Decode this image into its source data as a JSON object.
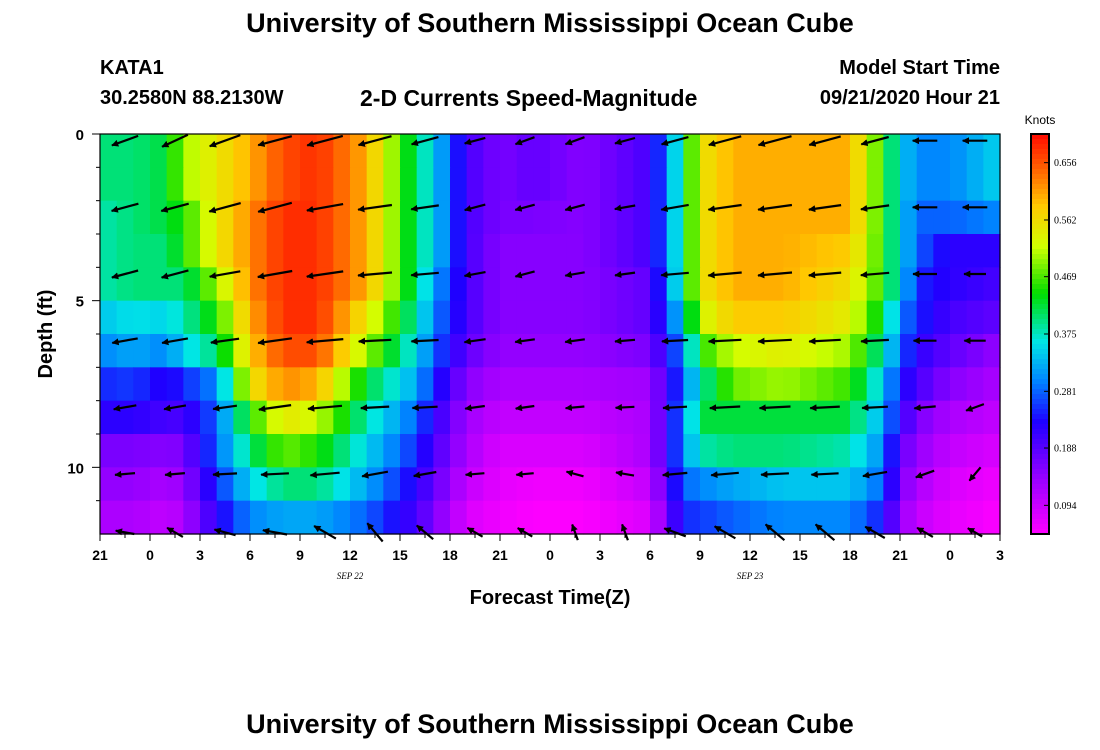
{
  "page_title": "University of Southern Mississippi Ocean Cube",
  "footer_title": "University of Southern Mississippi Ocean Cube",
  "station": {
    "id": "KATA1",
    "coordinates": "30.2580N 88.2130W",
    "model_start_label": "Model Start Time",
    "model_start_time": "09/21/2020 Hour 21"
  },
  "chart_data": {
    "type": "heatmap",
    "title": "2-D Currents Speed-Magnitude",
    "xlabel": "Forecast Time(Z)",
    "ylabel": "Depth (ft)",
    "x_tick_labels": [
      "21",
      "0",
      "3",
      "6",
      "9",
      "12",
      "15",
      "18",
      "21",
      "0",
      "3",
      "6",
      "9",
      "12",
      "15",
      "18",
      "21",
      "0",
      "3"
    ],
    "x_tick_hours": [
      0,
      3,
      6,
      9,
      12,
      15,
      18,
      21,
      24,
      27,
      30,
      33,
      36,
      39,
      42,
      45,
      48,
      51,
      54
    ],
    "date_labels": [
      {
        "text": "SEP 22",
        "hour": 15
      },
      {
        "text": "SEP 23",
        "hour": 39
      }
    ],
    "y_ticks": [
      0,
      5,
      10
    ],
    "ylim": [
      0,
      12
    ],
    "xlim": [
      0,
      54
    ],
    "colorbar": {
      "unit": "Knots",
      "min": 0.047,
      "max": 0.703,
      "tick_values": [
        0.094,
        0.188,
        0.281,
        0.375,
        0.469,
        0.562,
        0.656
      ],
      "tick_labels": [
        "0.094",
        "0.188",
        "0.281",
        "0.375",
        "0.469",
        "0.562",
        "0.656"
      ]
    },
    "depth_rows": [
      0.5,
      1.5,
      2.5,
      3.5,
      4.5,
      5.5,
      6.5,
      7.5,
      8.5,
      9.5,
      10.5,
      11.5
    ],
    "time_profile_hours": [
      0,
      2,
      4,
      5,
      7,
      9,
      11,
      13,
      16,
      19,
      20,
      22,
      24,
      26,
      29,
      33,
      35,
      36,
      38,
      41,
      45,
      47,
      48,
      49,
      51,
      54
    ],
    "speed_profiles": [
      [
        0.4,
        0.4,
        0.42,
        0.5,
        0.55,
        0.6,
        0.66,
        0.68,
        0.6,
        0.4,
        0.35,
        0.2,
        0.16,
        0.18,
        0.15,
        0.2,
        0.4,
        0.55,
        0.6,
        0.6,
        0.6,
        0.45,
        0.35,
        0.3,
        0.3,
        0.35
      ],
      [
        0.4,
        0.4,
        0.42,
        0.5,
        0.55,
        0.6,
        0.66,
        0.68,
        0.6,
        0.4,
        0.35,
        0.2,
        0.16,
        0.18,
        0.15,
        0.2,
        0.4,
        0.55,
        0.6,
        0.6,
        0.6,
        0.45,
        0.35,
        0.3,
        0.3,
        0.35
      ],
      [
        0.38,
        0.4,
        0.42,
        0.45,
        0.55,
        0.62,
        0.68,
        0.68,
        0.6,
        0.4,
        0.35,
        0.2,
        0.16,
        0.16,
        0.15,
        0.2,
        0.4,
        0.55,
        0.6,
        0.6,
        0.6,
        0.45,
        0.35,
        0.28,
        0.28,
        0.3
      ],
      [
        0.38,
        0.4,
        0.4,
        0.45,
        0.55,
        0.62,
        0.68,
        0.68,
        0.6,
        0.4,
        0.35,
        0.2,
        0.15,
        0.15,
        0.15,
        0.2,
        0.4,
        0.55,
        0.6,
        0.6,
        0.58,
        0.45,
        0.35,
        0.28,
        0.22,
        0.22
      ],
      [
        0.38,
        0.4,
        0.4,
        0.4,
        0.5,
        0.62,
        0.68,
        0.68,
        0.6,
        0.4,
        0.32,
        0.2,
        0.15,
        0.15,
        0.15,
        0.18,
        0.4,
        0.55,
        0.6,
        0.6,
        0.56,
        0.45,
        0.35,
        0.25,
        0.22,
        0.2
      ],
      [
        0.34,
        0.36,
        0.35,
        0.38,
        0.45,
        0.6,
        0.68,
        0.68,
        0.55,
        0.38,
        0.3,
        0.2,
        0.15,
        0.15,
        0.15,
        0.18,
        0.35,
        0.52,
        0.58,
        0.58,
        0.54,
        0.42,
        0.3,
        0.25,
        0.2,
        0.18
      ],
      [
        0.3,
        0.32,
        0.3,
        0.35,
        0.4,
        0.58,
        0.66,
        0.66,
        0.5,
        0.35,
        0.28,
        0.18,
        0.14,
        0.14,
        0.14,
        0.16,
        0.3,
        0.45,
        0.52,
        0.54,
        0.5,
        0.38,
        0.28,
        0.22,
        0.18,
        0.14
      ],
      [
        0.25,
        0.26,
        0.22,
        0.25,
        0.3,
        0.55,
        0.62,
        0.6,
        0.42,
        0.32,
        0.25,
        0.15,
        0.12,
        0.12,
        0.12,
        0.13,
        0.28,
        0.38,
        0.48,
        0.5,
        0.46,
        0.34,
        0.24,
        0.2,
        0.15,
        0.12
      ],
      [
        0.22,
        0.22,
        0.2,
        0.2,
        0.28,
        0.45,
        0.55,
        0.52,
        0.38,
        0.28,
        0.22,
        0.13,
        0.1,
        0.1,
        0.1,
        0.12,
        0.3,
        0.42,
        0.42,
        0.42,
        0.42,
        0.32,
        0.22,
        0.16,
        0.12,
        0.1
      ],
      [
        0.16,
        0.16,
        0.15,
        0.16,
        0.28,
        0.4,
        0.48,
        0.45,
        0.35,
        0.25,
        0.2,
        0.12,
        0.08,
        0.08,
        0.08,
        0.12,
        0.3,
        0.38,
        0.4,
        0.4,
        0.38,
        0.3,
        0.18,
        0.14,
        0.1,
        0.08
      ],
      [
        0.14,
        0.14,
        0.12,
        0.14,
        0.25,
        0.35,
        0.4,
        0.4,
        0.32,
        0.22,
        0.18,
        0.1,
        0.07,
        0.06,
        0.06,
        0.1,
        0.28,
        0.3,
        0.32,
        0.34,
        0.34,
        0.28,
        0.16,
        0.12,
        0.08,
        0.06
      ],
      [
        0.12,
        0.12,
        0.1,
        0.12,
        0.22,
        0.3,
        0.32,
        0.32,
        0.28,
        0.2,
        0.16,
        0.08,
        0.06,
        0.05,
        0.05,
        0.08,
        0.25,
        0.26,
        0.28,
        0.3,
        0.3,
        0.24,
        0.14,
        0.1,
        0.07,
        0.05
      ]
    ],
    "vector_hours": [
      1.5,
      4.5,
      7.5,
      10.5,
      13.5,
      16.5,
      19.5,
      22.5,
      25.5,
      28.5,
      31.5,
      34.5,
      37.5,
      40.5,
      43.5,
      46.5,
      49.5,
      52.5
    ],
    "vector_depths": [
      0.2,
      2.2,
      4.2,
      6.2,
      8.2,
      10.2,
      11.95
    ],
    "vectors_direction_deg": [
      [
        200,
        205,
        200,
        195,
        195,
        195,
        195,
        195,
        200,
        200,
        195,
        195,
        195,
        195,
        195,
        195,
        180,
        180
      ],
      [
        195,
        195,
        195,
        195,
        190,
        188,
        188,
        195,
        195,
        195,
        190,
        190,
        188,
        188,
        188,
        188,
        180,
        180
      ],
      [
        195,
        195,
        190,
        190,
        188,
        185,
        185,
        190,
        195,
        190,
        188,
        185,
        185,
        185,
        185,
        185,
        180,
        180
      ],
      [
        190,
        190,
        188,
        188,
        185,
        183,
        183,
        188,
        188,
        188,
        185,
        183,
        183,
        183,
        183,
        183,
        180,
        180
      ],
      [
        190,
        190,
        188,
        188,
        185,
        183,
        183,
        188,
        188,
        185,
        183,
        183,
        183,
        183,
        183,
        183,
        185,
        200
      ],
      [
        185,
        185,
        183,
        183,
        185,
        190,
        190,
        185,
        185,
        165,
        170,
        185,
        185,
        183,
        183,
        190,
        200,
        230
      ],
      [
        170,
        150,
        165,
        170,
        150,
        130,
        140,
        150,
        150,
        110,
        110,
        160,
        150,
        140,
        140,
        150,
        150,
        150
      ]
    ],
    "vectors_speed_kn": [
      [
        0.4,
        0.42,
        0.55,
        0.62,
        0.68,
        0.6,
        0.4,
        0.2,
        0.16,
        0.16,
        0.18,
        0.4,
        0.58,
        0.6,
        0.55,
        0.42,
        0.3,
        0.3
      ],
      [
        0.4,
        0.42,
        0.55,
        0.62,
        0.68,
        0.6,
        0.4,
        0.2,
        0.16,
        0.16,
        0.18,
        0.4,
        0.58,
        0.6,
        0.55,
        0.42,
        0.3,
        0.3
      ],
      [
        0.38,
        0.4,
        0.5,
        0.62,
        0.68,
        0.6,
        0.4,
        0.2,
        0.15,
        0.15,
        0.16,
        0.4,
        0.58,
        0.6,
        0.55,
        0.42,
        0.28,
        0.22
      ],
      [
        0.34,
        0.35,
        0.42,
        0.6,
        0.68,
        0.55,
        0.38,
        0.2,
        0.15,
        0.15,
        0.16,
        0.35,
        0.56,
        0.58,
        0.52,
        0.4,
        0.25,
        0.2
      ],
      [
        0.25,
        0.22,
        0.28,
        0.55,
        0.6,
        0.42,
        0.32,
        0.15,
        0.12,
        0.12,
        0.12,
        0.28,
        0.48,
        0.5,
        0.46,
        0.34,
        0.2,
        0.12
      ],
      [
        0.16,
        0.15,
        0.28,
        0.4,
        0.45,
        0.35,
        0.25,
        0.12,
        0.08,
        0.08,
        0.1,
        0.3,
        0.4,
        0.4,
        0.38,
        0.3,
        0.14,
        0.08
      ],
      [
        0.12,
        0.1,
        0.22,
        0.3,
        0.32,
        0.28,
        0.2,
        0.08,
        0.06,
        0.05,
        0.06,
        0.25,
        0.28,
        0.3,
        0.3,
        0.24,
        0.1,
        0.05
      ]
    ]
  }
}
